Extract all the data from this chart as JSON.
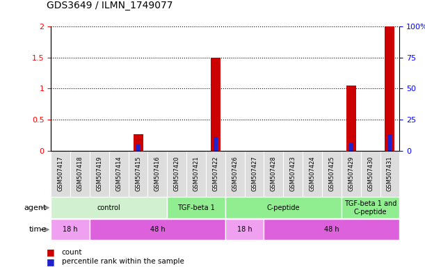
{
  "title": "GDS3649 / ILMN_1749077",
  "samples": [
    "GSM507417",
    "GSM507418",
    "GSM507419",
    "GSM507414",
    "GSM507415",
    "GSM507416",
    "GSM507420",
    "GSM507421",
    "GSM507422",
    "GSM507426",
    "GSM507427",
    "GSM507428",
    "GSM507423",
    "GSM507424",
    "GSM507425",
    "GSM507429",
    "GSM507430",
    "GSM507431"
  ],
  "count_values": [
    0,
    0,
    0,
    0,
    0.27,
    0,
    0,
    0,
    1.5,
    0,
    0,
    0,
    0,
    0,
    0,
    1.05,
    0,
    2.0
  ],
  "percentile_values": [
    0,
    0,
    0,
    0,
    5,
    0,
    0,
    0,
    11,
    0,
    0,
    0,
    0,
    0,
    0,
    6,
    0,
    13
  ],
  "ylim_left": [
    0,
    2.0
  ],
  "ylim_right": [
    0,
    100
  ],
  "yticks_left": [
    0,
    0.5,
    1.0,
    1.5,
    2.0
  ],
  "yticks_right": [
    0,
    25,
    50,
    75,
    100
  ],
  "ytick_labels_left": [
    "0",
    "0.5",
    "1",
    "1.5",
    "2"
  ],
  "ytick_labels_right": [
    "0",
    "25",
    "50",
    "75",
    "100%"
  ],
  "agent_groups": [
    {
      "label": "control",
      "start": 0,
      "end": 6,
      "color": "#d0f0d0"
    },
    {
      "label": "TGF-beta 1",
      "start": 6,
      "end": 9,
      "color": "#90ee90"
    },
    {
      "label": "C-peptide",
      "start": 9,
      "end": 15,
      "color": "#90ee90"
    },
    {
      "label": "TGF-beta 1 and\nC-peptide",
      "start": 15,
      "end": 18,
      "color": "#90ee90"
    }
  ],
  "time_groups": [
    {
      "label": "18 h",
      "start": 0,
      "end": 2,
      "color": "#f0a0f0"
    },
    {
      "label": "48 h",
      "start": 2,
      "end": 9,
      "color": "#dd60dd"
    },
    {
      "label": "18 h",
      "start": 9,
      "end": 11,
      "color": "#f0a0f0"
    },
    {
      "label": "48 h",
      "start": 11,
      "end": 18,
      "color": "#dd60dd"
    }
  ],
  "bar_color_red": "#cc0000",
  "bar_color_blue": "#2222cc",
  "legend_count_color": "#cc0000",
  "legend_percentile_color": "#2222cc"
}
